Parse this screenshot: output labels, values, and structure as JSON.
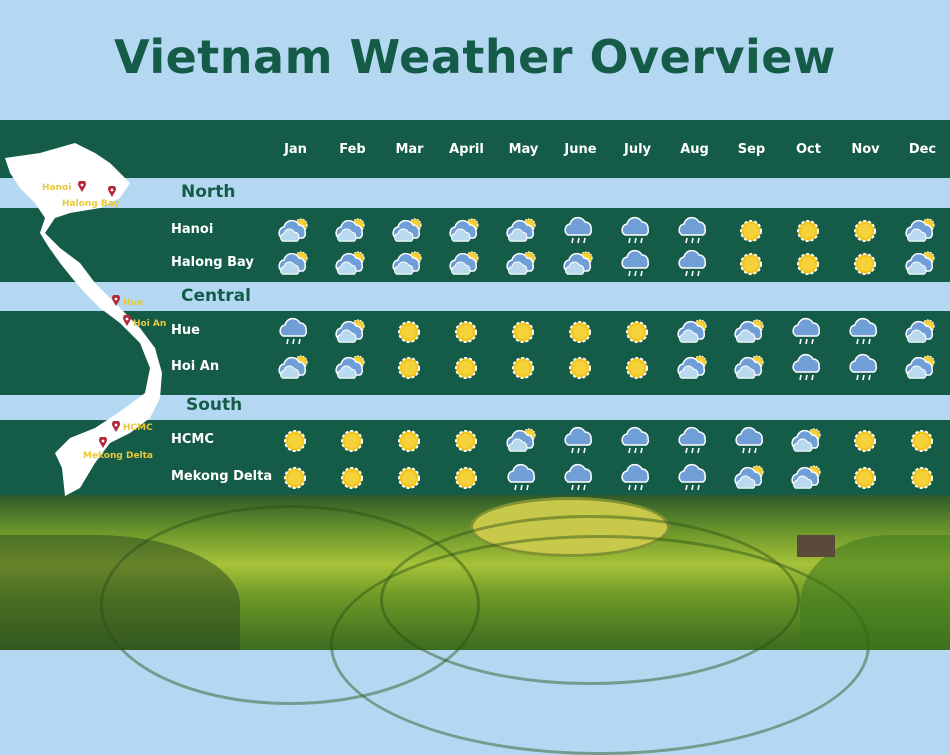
{
  "title": "Vietnam Weather Overview",
  "months": [
    "Jan",
    "Feb",
    "Mar",
    "April",
    "May",
    "June",
    "July",
    "Aug",
    "Sep",
    "Oct",
    "Nov",
    "Dec"
  ],
  "legend_codes": {
    "s": "sunny-icon",
    "p": "partly-cloudy-icon",
    "r": "rain-cloud-icon"
  },
  "colors": {
    "green": "#145c48",
    "light_blue": "#b4d8f2",
    "sun": "#f2c51f",
    "cloud": "#6f9fd6",
    "pin": "#b2293a",
    "pin_label": "#e8c93a"
  },
  "regions": [
    {
      "name": "North",
      "cities": [
        {
          "name": "Hanoi",
          "weather": [
            "p",
            "p",
            "p",
            "p",
            "p",
            "r",
            "r",
            "r",
            "s",
            "s",
            "s",
            "p"
          ]
        },
        {
          "name": "Halong Bay",
          "weather": [
            "p",
            "p",
            "p",
            "p",
            "p",
            "p",
            "r",
            "r",
            "s",
            "s",
            "s",
            "p"
          ]
        }
      ]
    },
    {
      "name": "Central",
      "cities": [
        {
          "name": "Hue",
          "weather": [
            "r",
            "p",
            "s",
            "s",
            "s",
            "s",
            "s",
            "p",
            "p",
            "r",
            "r",
            "p"
          ]
        },
        {
          "name": "Hoi An",
          "weather": [
            "p",
            "p",
            "s",
            "s",
            "s",
            "s",
            "s",
            "p",
            "p",
            "r",
            "r",
            "p"
          ]
        }
      ]
    },
    {
      "name": "South",
      "cities": [
        {
          "name": "HCMC",
          "weather": [
            "s",
            "s",
            "s",
            "s",
            "p",
            "r",
            "r",
            "r",
            "r",
            "p",
            "s",
            "s"
          ]
        },
        {
          "name": "Mekong Delta",
          "weather": [
            "s",
            "s",
            "s",
            "s",
            "r",
            "r",
            "r",
            "r",
            "p",
            "p",
            "s",
            "s"
          ]
        }
      ]
    }
  ],
  "map_pins": [
    "Hanoi",
    "Halong Bay",
    "Hue",
    "Hoi An",
    "HCMC",
    "Mekong Delta"
  ]
}
